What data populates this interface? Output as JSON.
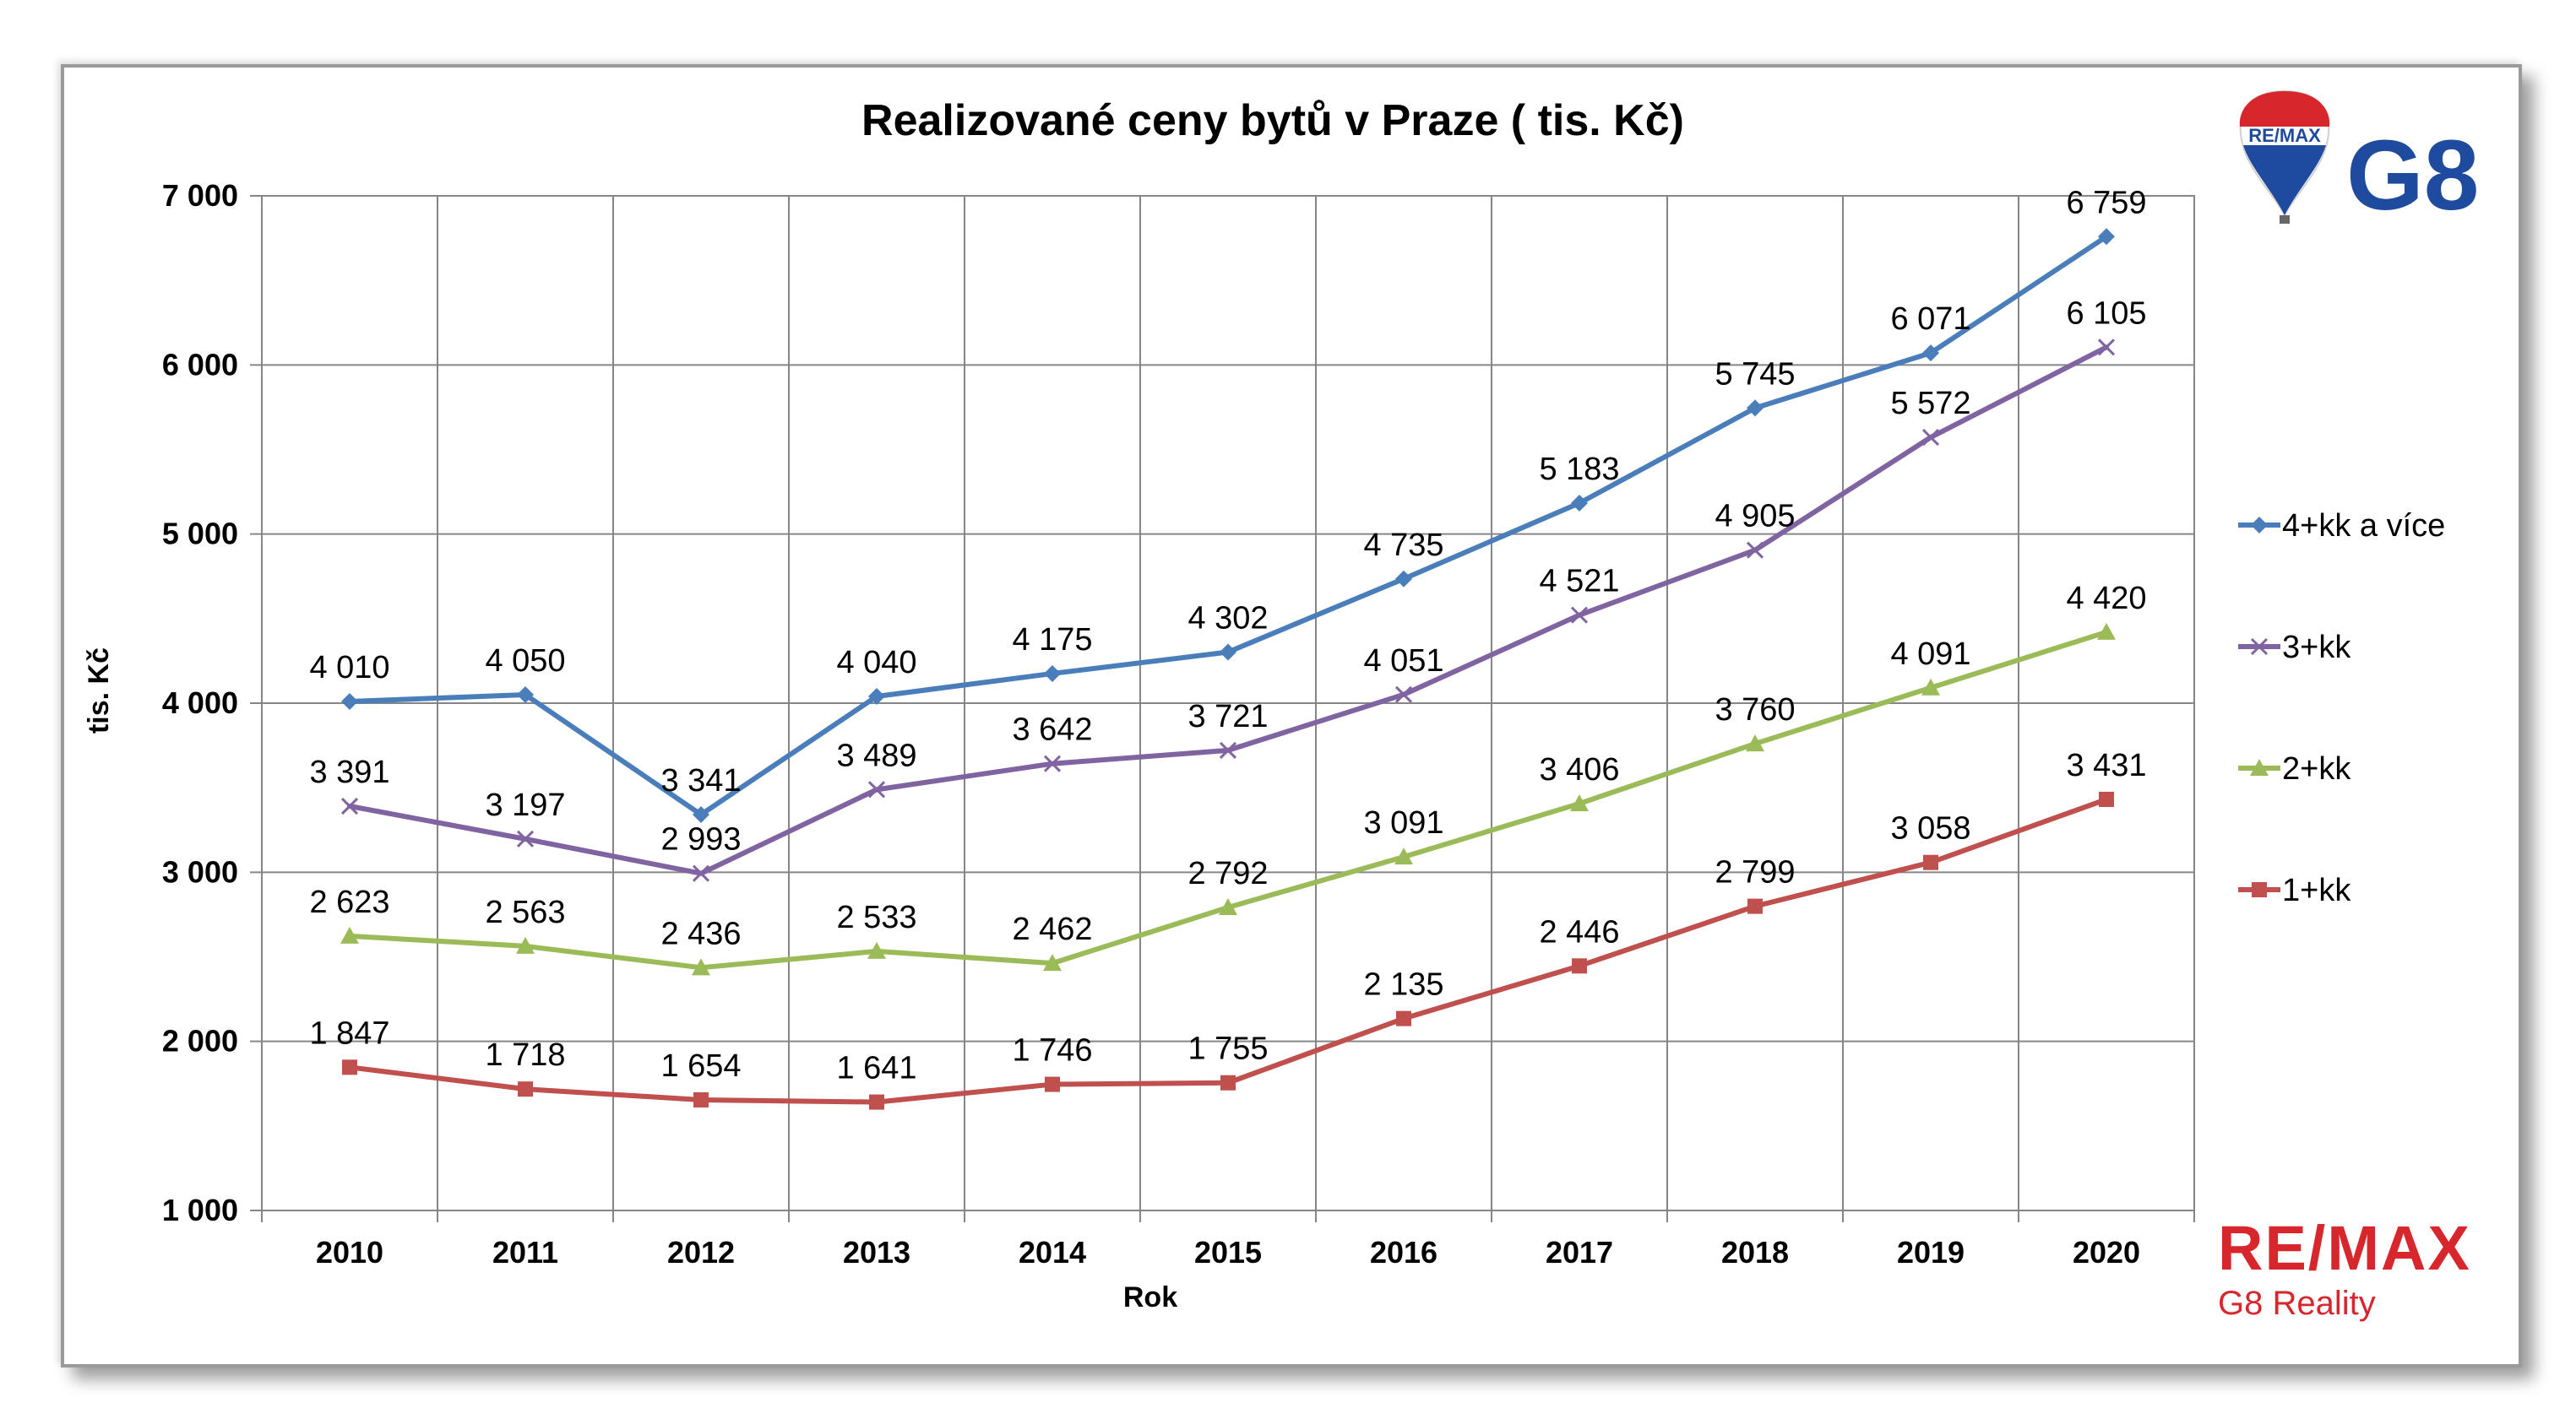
{
  "chart_data": {
    "type": "line",
    "title": "Realizované ceny bytů v Praze ( tis. Kč)",
    "xlabel": "Rok",
    "ylabel": "tis. Kč",
    "ylim": [
      1000,
      7000
    ],
    "yticks": [
      1000,
      2000,
      3000,
      4000,
      5000,
      6000,
      7000
    ],
    "ytick_labels": [
      "1 000",
      "2 000",
      "3 000",
      "4 000",
      "5 000",
      "6 000",
      "7 000"
    ],
    "grid": true,
    "legend_position": "right",
    "categories": [
      "2010",
      "2011",
      "2012",
      "2013",
      "2014",
      "2015",
      "2016",
      "2017",
      "2018",
      "2019",
      "2020"
    ],
    "series": [
      {
        "name": "4+kk a více",
        "color": "#4a7ebb",
        "marker": "diamond",
        "values": [
          4010,
          4050,
          3341,
          4040,
          4175,
          4302,
          4735,
          5183,
          5745,
          6071,
          6759
        ],
        "labels": [
          "4 010",
          "4 050",
          "3 341",
          "4 040",
          "4 175",
          "4 302",
          "4 735",
          "5 183",
          "5 745",
          "6 071",
          "6 759"
        ]
      },
      {
        "name": "3+kk",
        "color": "#8064a2",
        "marker": "x",
        "values": [
          3391,
          3197,
          2993,
          3489,
          3642,
          3721,
          4051,
          4521,
          4905,
          5572,
          6105
        ],
        "labels": [
          "3 391",
          "3 197",
          "2 993",
          "3 489",
          "3 642",
          "3 721",
          "4 051",
          "4 521",
          "4 905",
          "5 572",
          "6 105"
        ]
      },
      {
        "name": "2+kk",
        "color": "#9bbb59",
        "marker": "triangle",
        "values": [
          2623,
          2563,
          2436,
          2533,
          2462,
          2792,
          3091,
          3406,
          3760,
          4091,
          4420
        ],
        "labels": [
          "2 623",
          "2 563",
          "2 436",
          "2 533",
          "2 462",
          "2 792",
          "3 091",
          "3 406",
          "3 760",
          "4 091",
          "4 420"
        ]
      },
      {
        "name": "1+kk",
        "color": "#c0504d",
        "marker": "square",
        "values": [
          1847,
          1718,
          1654,
          1641,
          1746,
          1755,
          2135,
          2446,
          2799,
          3058,
          3431
        ],
        "labels": [
          "1 847",
          "1 718",
          "1 654",
          "1 641",
          "1 746",
          "1 755",
          "2 135",
          "2 446",
          "2 799",
          "3 058",
          "3 431"
        ]
      }
    ]
  },
  "branding": {
    "balloon_text": "RE/MAX",
    "top_logo_text": "G8",
    "bottom_logo_text": "RE/MAX",
    "bottom_logo_sub": "G8 Reality",
    "red": "#d8262d",
    "blue": "#1f4b9e"
  }
}
